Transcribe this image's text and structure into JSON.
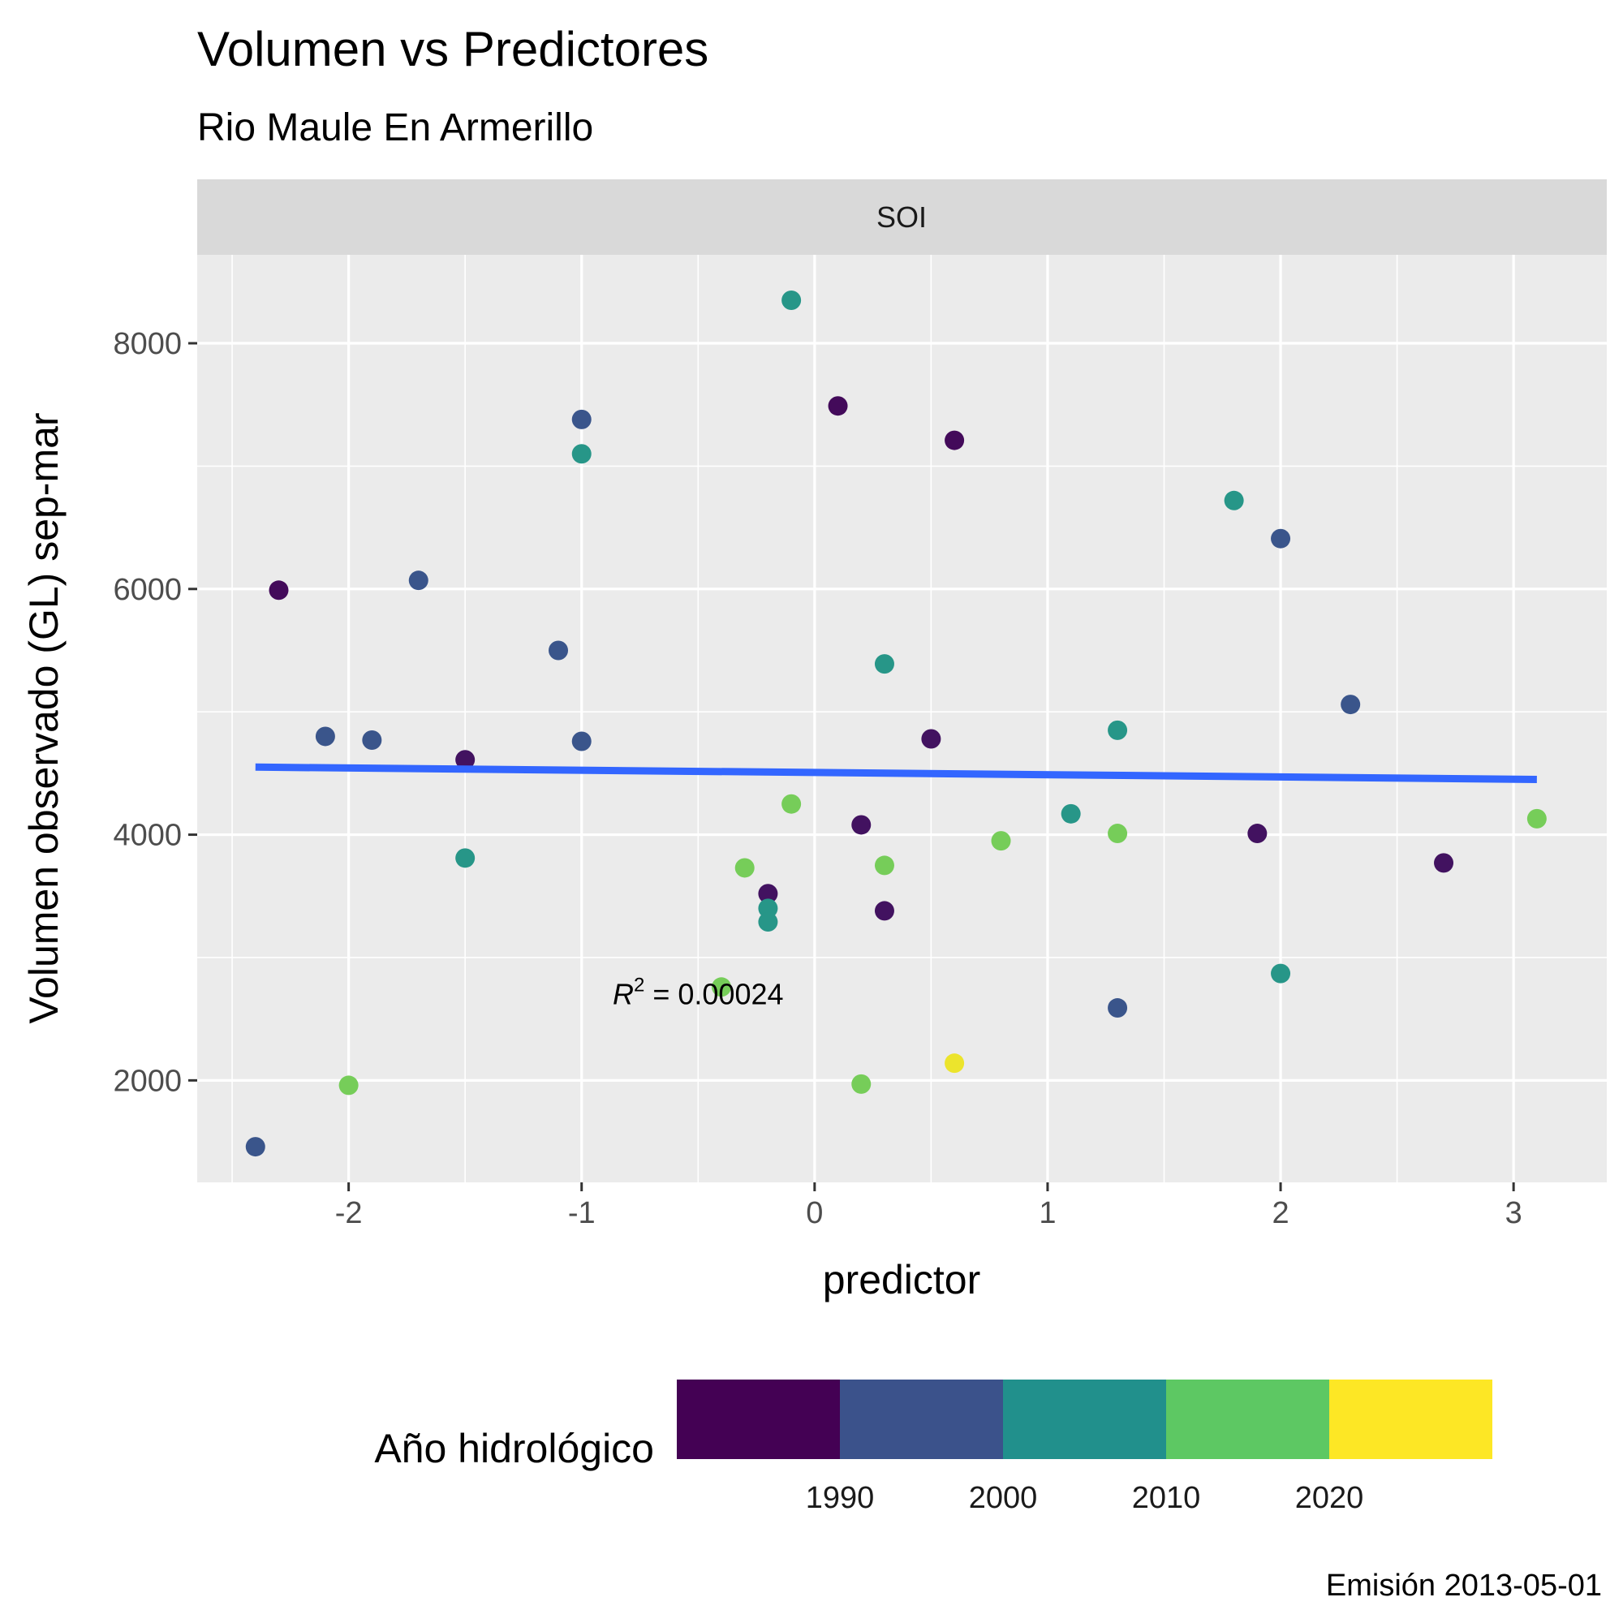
{
  "chart_data": {
    "type": "scatter",
    "title": "Volumen vs Predictores",
    "subtitle": "Rio Maule En Armerillo",
    "facet": "SOI",
    "xlabel": "predictor",
    "ylabel": "Volumen observado (GL) sep-mar",
    "xlim": [
      -2.65,
      3.4
    ],
    "ylim": [
      1170,
      8720
    ],
    "xticks": [
      -2,
      -1,
      0,
      1,
      2,
      3
    ],
    "xtick_labels": [
      "-2",
      "-1",
      "0",
      "1",
      "2",
      "3"
    ],
    "yticks": [
      2000,
      4000,
      6000,
      8000
    ],
    "ytick_labels": [
      "2000",
      "4000",
      "6000",
      "8000"
    ],
    "grid": true,
    "points": [
      {
        "x": -2.3,
        "y": 5990,
        "year": 1986
      },
      {
        "x": -1.5,
        "y": 4610,
        "year": 1987
      },
      {
        "x": 0.1,
        "y": 7490,
        "year": 1986
      },
      {
        "x": 0.6,
        "y": 7210,
        "year": 1986
      },
      {
        "x": 0.5,
        "y": 4780,
        "year": 1987
      },
      {
        "x": 0.2,
        "y": 4080,
        "year": 1987
      },
      {
        "x": -0.2,
        "y": 3520,
        "year": 1987
      },
      {
        "x": 0.3,
        "y": 3380,
        "year": 1987
      },
      {
        "x": 1.9,
        "y": 4010,
        "year": 1987
      },
      {
        "x": 2.7,
        "y": 3770,
        "year": 1987
      },
      {
        "x": -2.4,
        "y": 1460,
        "year": 1995
      },
      {
        "x": -2.1,
        "y": 4800,
        "year": 1995
      },
      {
        "x": -1.9,
        "y": 4770,
        "year": 1995
      },
      {
        "x": -1.7,
        "y": 6070,
        "year": 1995
      },
      {
        "x": -1.1,
        "y": 5500,
        "year": 1995
      },
      {
        "x": -1.0,
        "y": 7380,
        "year": 1995
      },
      {
        "x": -1.0,
        "y": 4760,
        "year": 1995
      },
      {
        "x": 1.3,
        "y": 2590,
        "year": 1995
      },
      {
        "x": 2.0,
        "y": 6410,
        "year": 1995
      },
      {
        "x": 2.3,
        "y": 5060,
        "year": 1995
      },
      {
        "x": -0.1,
        "y": 8350,
        "year": 2005
      },
      {
        "x": -1.0,
        "y": 7100,
        "year": 2005
      },
      {
        "x": -1.5,
        "y": 3810,
        "year": 2005
      },
      {
        "x": 0.3,
        "y": 5390,
        "year": 2005
      },
      {
        "x": -0.2,
        "y": 3400,
        "year": 2005
      },
      {
        "x": -0.2,
        "y": 3290,
        "year": 2005
      },
      {
        "x": 1.1,
        "y": 4170,
        "year": 2005
      },
      {
        "x": 1.3,
        "y": 4850,
        "year": 2005
      },
      {
        "x": 1.8,
        "y": 6720,
        "year": 2005
      },
      {
        "x": 2.0,
        "y": 2870,
        "year": 2005
      },
      {
        "x": -2.0,
        "y": 1960,
        "year": 2015
      },
      {
        "x": -0.3,
        "y": 3730,
        "year": 2015
      },
      {
        "x": -0.4,
        "y": 2760,
        "year": 2015
      },
      {
        "x": -0.1,
        "y": 4250,
        "year": 2015
      },
      {
        "x": 0.3,
        "y": 3750,
        "year": 2015
      },
      {
        "x": 0.2,
        "y": 1970,
        "year": 2015
      },
      {
        "x": 0.8,
        "y": 3950,
        "year": 2015
      },
      {
        "x": 1.3,
        "y": 4010,
        "year": 2015
      },
      {
        "x": 3.1,
        "y": 4130,
        "year": 2015
      },
      {
        "x": 0.6,
        "y": 2140,
        "year": 2022
      }
    ],
    "fit_line": {
      "x": [
        -2.4,
        3.1
      ],
      "y": [
        4550,
        4450
      ],
      "color": "#3366FF"
    },
    "annotation": {
      "r2_symbol": "R",
      "r2_exponent": "2",
      "r2_value": " = 0.00024",
      "x": -0.5,
      "y": 2700
    },
    "legend": {
      "title": "Año hidrológico",
      "position": "bottom",
      "breaks": [
        1990,
        2000,
        2010,
        2020
      ],
      "break_labels": [
        "1990",
        "2000",
        "2010",
        "2020"
      ],
      "bins": [
        {
          "color": "#440154"
        },
        {
          "color": "#3B528B"
        },
        {
          "color": "#21908C"
        },
        {
          "color": "#5DC863"
        },
        {
          "color": "#FDE725"
        }
      ]
    },
    "caption": "Emisión 2013-05-01",
    "colors": {
      "panel_background": "#EBEBEB",
      "strip_background": "#D9D9D9",
      "grid": "#FFFFFF",
      "axis_ticks": "#333333"
    }
  }
}
